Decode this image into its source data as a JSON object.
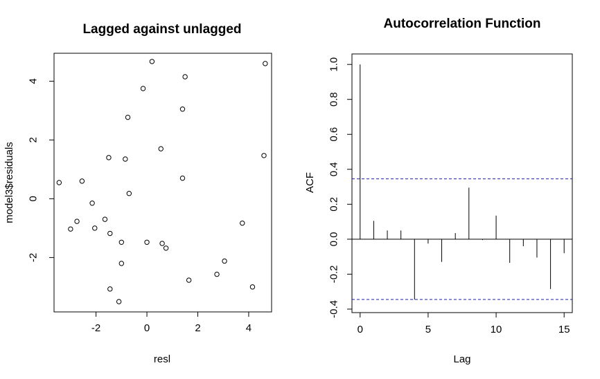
{
  "chart_data": [
    {
      "type": "scatter",
      "title": "Lagged against unlagged",
      "xlabel": "resl",
      "ylabel": "model3$residuals",
      "xticks": [
        "-2",
        "0",
        "2",
        "4"
      ],
      "yticks": [
        "-2",
        "0",
        "2",
        "4"
      ],
      "xtick_values": [
        -2,
        0,
        2,
        4
      ],
      "ytick_values": [
        -2,
        0,
        2,
        4
      ],
      "xlim": [
        -3.65,
        4.9
      ],
      "ylim": [
        -3.85,
        4.95
      ],
      "points": [
        {
          "x": 0.2,
          "y": 4.67
        },
        {
          "x": 4.65,
          "y": 4.6
        },
        {
          "x": 1.5,
          "y": 4.15
        },
        {
          "x": -0.15,
          "y": 3.75
        },
        {
          "x": 1.4,
          "y": 3.05
        },
        {
          "x": -0.75,
          "y": 2.77
        },
        {
          "x": 0.55,
          "y": 1.7
        },
        {
          "x": 4.6,
          "y": 1.47
        },
        {
          "x": -1.5,
          "y": 1.4
        },
        {
          "x": -0.85,
          "y": 1.35
        },
        {
          "x": 1.4,
          "y": 0.7
        },
        {
          "x": -3.45,
          "y": 0.55
        },
        {
          "x": -2.55,
          "y": 0.6
        },
        {
          "x": -0.7,
          "y": 0.18
        },
        {
          "x": -2.15,
          "y": -0.15
        },
        {
          "x": -1.65,
          "y": -0.7
        },
        {
          "x": -2.75,
          "y": -0.77
        },
        {
          "x": 3.75,
          "y": -0.83
        },
        {
          "x": -3.0,
          "y": -1.03
        },
        {
          "x": -2.05,
          "y": -1.0
        },
        {
          "x": -1.45,
          "y": -1.18
        },
        {
          "x": -1.0,
          "y": -1.48
        },
        {
          "x": 0.0,
          "y": -1.48
        },
        {
          "x": 0.6,
          "y": -1.52
        },
        {
          "x": 0.75,
          "y": -1.68
        },
        {
          "x": -1.0,
          "y": -2.2
        },
        {
          "x": 3.05,
          "y": -2.12
        },
        {
          "x": 2.75,
          "y": -2.57
        },
        {
          "x": 1.65,
          "y": -2.77
        },
        {
          "x": -1.45,
          "y": -3.07
        },
        {
          "x": 4.15,
          "y": -3.0
        },
        {
          "x": -1.1,
          "y": -3.5
        }
      ]
    },
    {
      "type": "bar",
      "title": "Autocorrelation Function",
      "xlabel": "Lag",
      "ylabel": "ACF",
      "xticks": [
        "0",
        "5",
        "10",
        "15"
      ],
      "yticks": [
        "-0.4",
        "-0.2",
        "0.0",
        "0.2",
        "0.4",
        "0.6",
        "0.8",
        "1.0"
      ],
      "xtick_values": [
        0,
        5,
        10,
        15
      ],
      "ytick_values": [
        -0.4,
        -0.2,
        0.0,
        0.2,
        0.4,
        0.6,
        0.8,
        1.0
      ],
      "xlim": [
        -0.6,
        15.6
      ],
      "ylim": [
        -0.42,
        1.06
      ],
      "lags": [
        0,
        1,
        2,
        3,
        4,
        5,
        6,
        7,
        8,
        9,
        10,
        11,
        12,
        13,
        14,
        15
      ],
      "values": [
        1.0,
        0.105,
        0.05,
        0.05,
        -0.345,
        -0.025,
        -0.13,
        0.035,
        0.295,
        -0.005,
        0.135,
        -0.135,
        -0.04,
        -0.105,
        -0.285,
        -0.08
      ],
      "confidence_bound": [
        0.345,
        -0.345
      ],
      "confidence_color": "#1a1aa8"
    }
  ]
}
